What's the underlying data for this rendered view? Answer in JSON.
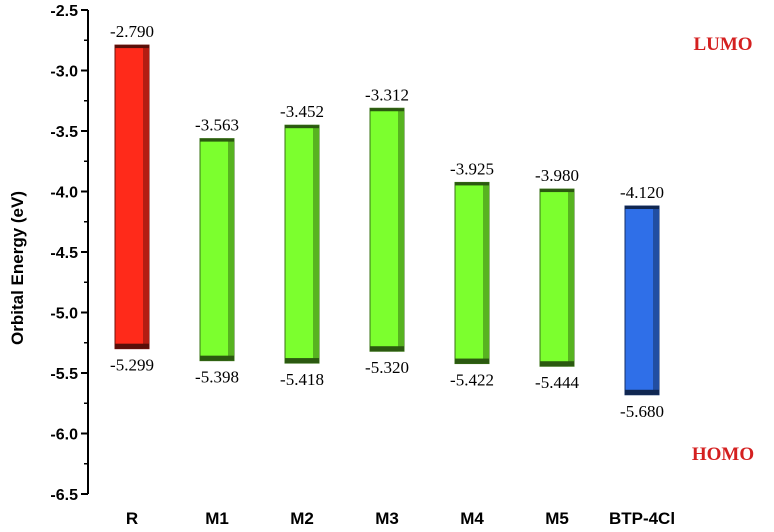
{
  "chart_data": {
    "type": "bar",
    "title": "",
    "xlabel": "",
    "ylabel": "Orbital Energy (eV)",
    "ylim": [
      -6.5,
      -2.5
    ],
    "yticks": [
      "-2.5",
      "-3.0",
      "-3.5",
      "-4.0",
      "-4.5",
      "-5.0",
      "-5.5",
      "-6.0",
      "-6.5"
    ],
    "categories": [
      "R",
      "M1",
      "M2",
      "M3",
      "M4",
      "M5",
      "BTP-4Cl"
    ],
    "lumo": [
      -2.79,
      -3.563,
      -3.452,
      -3.312,
      -3.925,
      -3.98,
      -4.12
    ],
    "homo": [
      -5.299,
      -5.398,
      -5.418,
      -5.32,
      -5.422,
      -5.444,
      -5.68
    ],
    "lumo_labels": [
      "-2.790",
      "-3.563",
      "-3.452",
      "-3.312",
      "-3.925",
      "-3.980",
      "-4.120"
    ],
    "homo_labels": [
      "-5.299",
      "-5.398",
      "-5.418",
      "-5.320",
      "-5.422",
      "-5.444",
      "-5.680"
    ],
    "bar_colors": [
      "#ff2a1a",
      "#7cff2e",
      "#7cff2e",
      "#7cff2e",
      "#7cff2e",
      "#7cff2e",
      "#2f6fe8"
    ],
    "annotations": {
      "lumo": "LUMO",
      "homo": "HOMO",
      "color": "#d42020"
    },
    "grid": false,
    "legend": "none"
  }
}
